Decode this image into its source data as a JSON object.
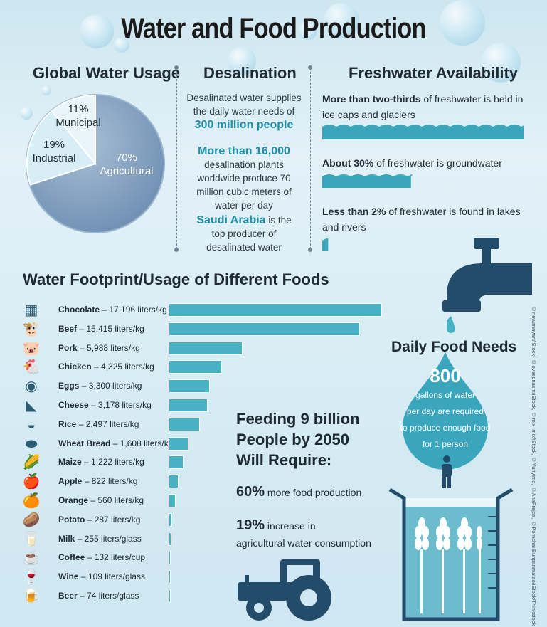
{
  "title": "Water and Food Production",
  "global_water_usage": {
    "heading": "Global Water Usage",
    "slices": [
      {
        "label": "Agricultural",
        "percent": "70%",
        "value": 70,
        "color": "#8ea7c4"
      },
      {
        "label": "Industrial",
        "percent": "19%",
        "value": 19,
        "color": "#d5ecf4"
      },
      {
        "label": "Municipal",
        "percent": "11%",
        "value": 11,
        "color": "#e7f3f8"
      }
    ]
  },
  "desalination": {
    "heading": "Desalination",
    "p1_pre": "Desalinated water supplies the daily water needs of",
    "p1_highlight": "300 million people",
    "p2_highlight": "More than 16,000",
    "p2_post": "desalination plants worldwide produce 70 million cubic meters of water per day",
    "p3_highlight": "Saudi Arabia",
    "p3_post": "is the top producer of desalinated water"
  },
  "freshwater": {
    "heading": "Freshwater Availability",
    "items": [
      {
        "bold": "More than two-thirds",
        "rest": "of freshwater is held in ice caps and glaciers",
        "share": 0.68
      },
      {
        "bold": "About 30%",
        "rest": "of freshwater is groundwater",
        "share": 0.3
      },
      {
        "bold": "Less than 2%",
        "rest": "of freshwater is found in lakes and rivers",
        "share": 0.02
      }
    ]
  },
  "foods": {
    "heading": "Water Footprint/Usage of Different Foods",
    "max_value": 17196,
    "items": [
      {
        "name": "Chocolate",
        "amount": "– 17,196 liters/kg",
        "value": 17196,
        "icon": "chocolate-icon",
        "glyph": "▦"
      },
      {
        "name": "Beef",
        "amount": "– 15,415 liters/kg",
        "value": 15415,
        "icon": "cow-icon",
        "glyph": "🐮"
      },
      {
        "name": "Pork",
        "amount": "– 5,988 liters/kg",
        "value": 5988,
        "icon": "pig-icon",
        "glyph": "🐷"
      },
      {
        "name": "Chicken",
        "amount": "– 4,325 liters/kg",
        "value": 4325,
        "icon": "chicken-icon",
        "glyph": "🐔"
      },
      {
        "name": "Eggs",
        "amount": "– 3,300 liters/kg",
        "value": 3300,
        "icon": "egg-icon",
        "glyph": "◉"
      },
      {
        "name": "Cheese",
        "amount": "– 3,178 liters/kg",
        "value": 3178,
        "icon": "cheese-icon",
        "glyph": "◣"
      },
      {
        "name": "Rice",
        "amount": "– 2,497 liters/kg",
        "value": 2497,
        "icon": "rice-bowl-icon",
        "glyph": "◒"
      },
      {
        "name": "Wheat Bread",
        "amount": "– 1,608 liters/kg",
        "value": 1608,
        "icon": "bread-icon",
        "glyph": "⬬"
      },
      {
        "name": "Maize",
        "amount": "– 1,222 liters/kg",
        "value": 1222,
        "icon": "corn-icon",
        "glyph": "🌽"
      },
      {
        "name": "Apple",
        "amount": "– 822 liters/kg",
        "value": 822,
        "icon": "apple-icon",
        "glyph": "🍎"
      },
      {
        "name": "Orange",
        "amount": "– 560 liters/kg",
        "value": 560,
        "icon": "orange-icon",
        "glyph": "🍊"
      },
      {
        "name": "Potato",
        "amount": "– 287 liters/kg",
        "value": 287,
        "icon": "potato-icon",
        "glyph": "🥔"
      },
      {
        "name": "Milk",
        "amount": "– 255 liters/glass",
        "value": 255,
        "icon": "milk-icon",
        "glyph": "🥛"
      },
      {
        "name": "Coffee",
        "amount": "– 132 liters/cup",
        "value": 132,
        "icon": "coffee-icon",
        "glyph": "☕"
      },
      {
        "name": "Wine",
        "amount": "– 109 liters/glass",
        "value": 109,
        "icon": "wine-icon",
        "glyph": "🍷"
      },
      {
        "name": "Beer",
        "amount": "– 74 liters/glass",
        "value": 74,
        "icon": "beer-icon",
        "glyph": "🍺"
      }
    ]
  },
  "feeding": {
    "heading_line1": "Feeding 9 billion",
    "heading_line2": "People by 2050",
    "heading_line3": "Will Require:",
    "stat1_value": "60%",
    "stat1_text": "more food production",
    "stat2_value": "19%",
    "stat2_text": "increase in",
    "stat2_text2": "agricultural water consumption"
  },
  "daily_food": {
    "heading": "Daily Food Needs",
    "number": "800",
    "line1": "gallons of water",
    "line2": "per day are required",
    "line3": "to produce enough food",
    "line4": "for 1 person"
  },
  "credit": "©newannyart/iStock, ©ovesgnasm/iStock, ©mix_mix/iStock, ©Yuriyimo, ©AnaFrejoa, ©Pornchai Bunpanmatao/iStock/Thinkstock",
  "colors": {
    "teal": "#1f8fa8",
    "bar": "#49b1c4",
    "navy": "#234c6b"
  }
}
